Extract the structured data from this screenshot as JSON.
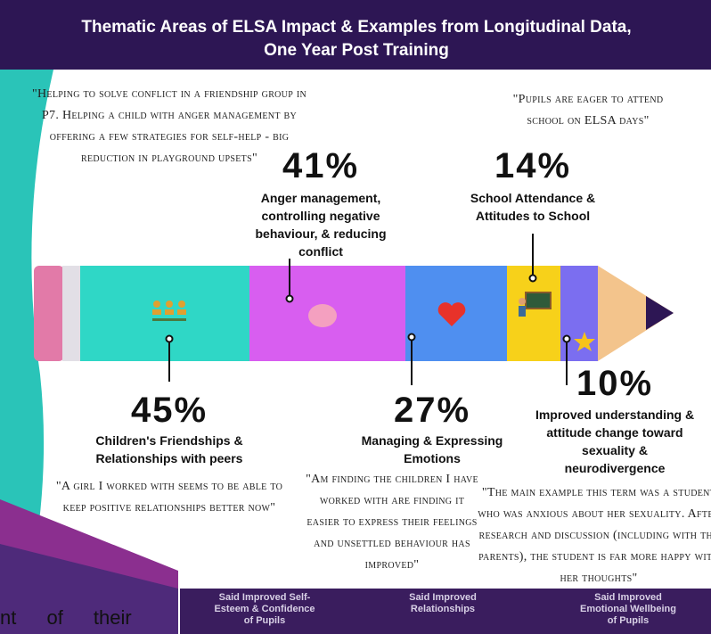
{
  "header": {
    "title": [
      "Thematic Areas of ELSA Impact & Examples from Longitudinal Data,",
      "One Year Post Training"
    ]
  },
  "themes": [
    {
      "percent": "41%",
      "label": [
        "Anger management,",
        "controlling negative",
        "behaviour, & reducing",
        "conflict"
      ],
      "quote": [
        "\"Helping to solve conflict in a friendship group in",
        "P7. Helping a child with anger management by",
        "offering a few strategies for self-help - big",
        "reduction in playground upsets\""
      ]
    },
    {
      "percent": "14%",
      "label": [
        "School Attendance &",
        "Attitudes to School"
      ],
      "quote": [
        "\"Pupils are eager to attend",
        "school on ELSA days\""
      ]
    },
    {
      "percent": "45%",
      "label": [
        "Children's Friendships &",
        "Relationships with peers"
      ],
      "quote": [
        "\"A girl I worked with seems to be able to",
        "keep positive relationships better now\""
      ]
    },
    {
      "percent": "27%",
      "label": [
        "Managing & Expressing",
        "Emotions"
      ],
      "quote": [
        "\"Am finding the children I have",
        "worked with are finding it",
        "easier to express their feelings",
        "and unsettled behaviour has",
        "improved\""
      ]
    },
    {
      "percent": "10%",
      "label": [
        "Improved understanding &",
        "attitude change toward",
        "sexuality &",
        "neurodivergence"
      ],
      "quote": [
        "\"The main example this term was a student",
        "who was anxious about her sexuality. After",
        "research and discussion (including with the",
        "parents), the student is far more happy with",
        "her thoughts\""
      ]
    }
  ],
  "footer": {
    "fragment": "nt of their",
    "labels": [
      [
        "Said Improved Self-",
        "Esteem & Confidence",
        "of Pupils"
      ],
      [
        "Said Improved",
        "Relationships"
      ],
      [
        "Said Improved",
        "Emotional Wellbeing",
        "of Pupils"
      ]
    ]
  }
}
